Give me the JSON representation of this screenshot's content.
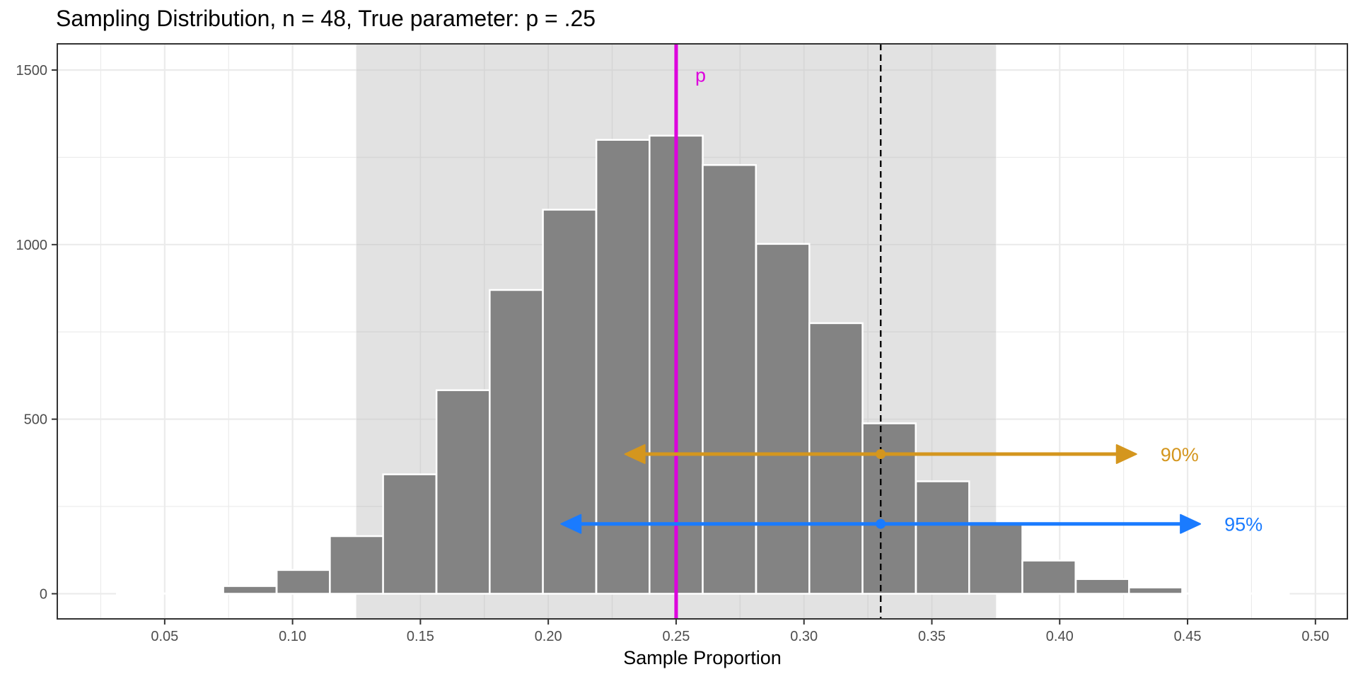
{
  "chart_data": {
    "type": "bar",
    "title": "Sampling Distribution, n = 48, True parameter: p = .25",
    "xlabel": "Sample Proportion",
    "ylabel": "",
    "xlim": [
      0.008,
      0.5125
    ],
    "ylim": [
      -72,
      1575
    ],
    "x_ticks": [
      0.05,
      0.1,
      0.15,
      0.2,
      0.25,
      0.3,
      0.35,
      0.4,
      0.45,
      0.5
    ],
    "x_tick_labels": [
      "0.05",
      "0.10",
      "0.15",
      "0.20",
      "0.25",
      "0.30",
      "0.35",
      "0.40",
      "0.45",
      "0.50"
    ],
    "y_ticks": [
      0,
      500,
      1000,
      1500
    ],
    "y_tick_labels": [
      "0",
      "500",
      "1000",
      "1500"
    ],
    "grid": true,
    "bin_width": 0.0208,
    "bins": [
      {
        "x": 0.0417,
        "count": 0
      },
      {
        "x": 0.0625,
        "count": 0
      },
      {
        "x": 0.0833,
        "count": 22
      },
      {
        "x": 0.1042,
        "count": 68
      },
      {
        "x": 0.125,
        "count": 165
      },
      {
        "x": 0.1458,
        "count": 342
      },
      {
        "x": 0.1667,
        "count": 583
      },
      {
        "x": 0.1875,
        "count": 870
      },
      {
        "x": 0.2083,
        "count": 1100
      },
      {
        "x": 0.2292,
        "count": 1300
      },
      {
        "x": 0.25,
        "count": 1312
      },
      {
        "x": 0.2708,
        "count": 1228
      },
      {
        "x": 0.2917,
        "count": 1002
      },
      {
        "x": 0.3125,
        "count": 775
      },
      {
        "x": 0.3333,
        "count": 488
      },
      {
        "x": 0.3542,
        "count": 322
      },
      {
        "x": 0.375,
        "count": 200
      },
      {
        "x": 0.3958,
        "count": 95
      },
      {
        "x": 0.4167,
        "count": 42
      },
      {
        "x": 0.4375,
        "count": 18
      },
      {
        "x": 0.4583,
        "count": 0
      },
      {
        "x": 0.4792,
        "count": 0
      }
    ],
    "shaded_region": {
      "x_from": 0.125,
      "x_to": 0.375
    },
    "true_parameter": {
      "x": 0.25,
      "label": "p",
      "color": "#DD00DD"
    },
    "sample_estimate": {
      "x": 0.33
    },
    "intervals": [
      {
        "label": "90%",
        "lower": 0.23,
        "upper": 0.43,
        "center": 0.33,
        "y": 400,
        "color": "#D4961E"
      },
      {
        "label": "95%",
        "lower": 0.205,
        "upper": 0.455,
        "center": 0.33,
        "y": 200,
        "color": "#1A7BFF"
      }
    ],
    "colors": {
      "bar_fill": "#838383",
      "bar_stroke": "#ffffff",
      "shade": "#e2e2e2",
      "panel_border": "#333333",
      "grid": "#ebebeb"
    }
  }
}
